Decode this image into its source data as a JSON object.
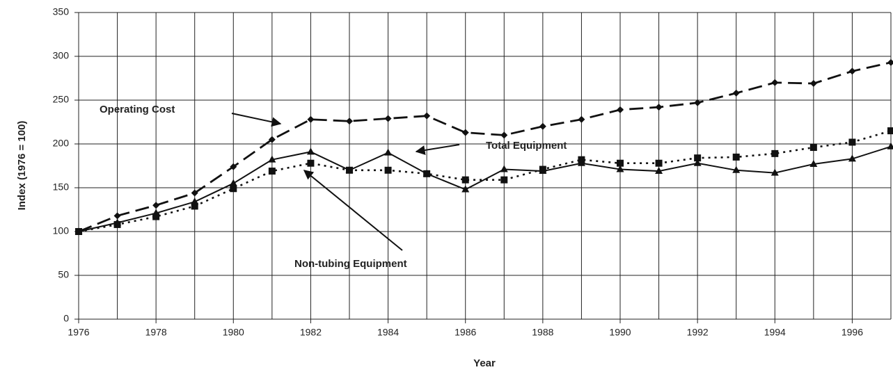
{
  "chart_data": {
    "type": "line",
    "x_label": "Year",
    "y_label": "Index (1976 = 100)",
    "x": [
      1976,
      1977,
      1978,
      1979,
      1980,
      1981,
      1982,
      1983,
      1984,
      1985,
      1986,
      1987,
      1988,
      1989,
      1990,
      1991,
      1992,
      1993,
      1994,
      1995,
      1996,
      1997
    ],
    "series": [
      {
        "name": "Operating Cost",
        "color": "#111",
        "marker": "diamond",
        "dash": "dashed",
        "values": [
          100,
          118,
          130,
          144,
          174,
          205,
          228,
          226,
          229,
          232,
          213,
          210,
          220,
          228,
          239,
          242,
          247,
          258,
          270,
          269,
          283,
          293
        ]
      },
      {
        "name": "Total Equipment",
        "color": "#111",
        "marker": "triangle",
        "dash": "solid",
        "values": [
          100,
          110,
          121,
          134,
          155,
          182,
          191,
          170,
          190,
          166,
          148,
          171,
          169,
          178,
          171,
          169,
          178,
          170,
          167,
          177,
          183,
          197
        ]
      },
      {
        "name": "Non-tubing Equipment",
        "color": "#111",
        "marker": "square",
        "dash": "dotted",
        "values": [
          100,
          108,
          117,
          129,
          149,
          169,
          178,
          170,
          170,
          166,
          159,
          159,
          171,
          182,
          178,
          178,
          184,
          185,
          189,
          196,
          202,
          215
        ]
      }
    ],
    "xlim": [
      1976,
      1997
    ],
    "xticks": [
      1976,
      1978,
      1980,
      1982,
      1984,
      1986,
      1988,
      1990,
      1992,
      1994,
      1996
    ],
    "x_minor_ticks": [
      1977,
      1979,
      1981,
      1983,
      1985,
      1987,
      1989,
      1991,
      1993,
      1995,
      1997
    ],
    "ylim": [
      0,
      350
    ],
    "yticks": [
      0,
      50,
      100,
      150,
      200,
      250,
      300,
      350
    ],
    "grid": true
  }
}
